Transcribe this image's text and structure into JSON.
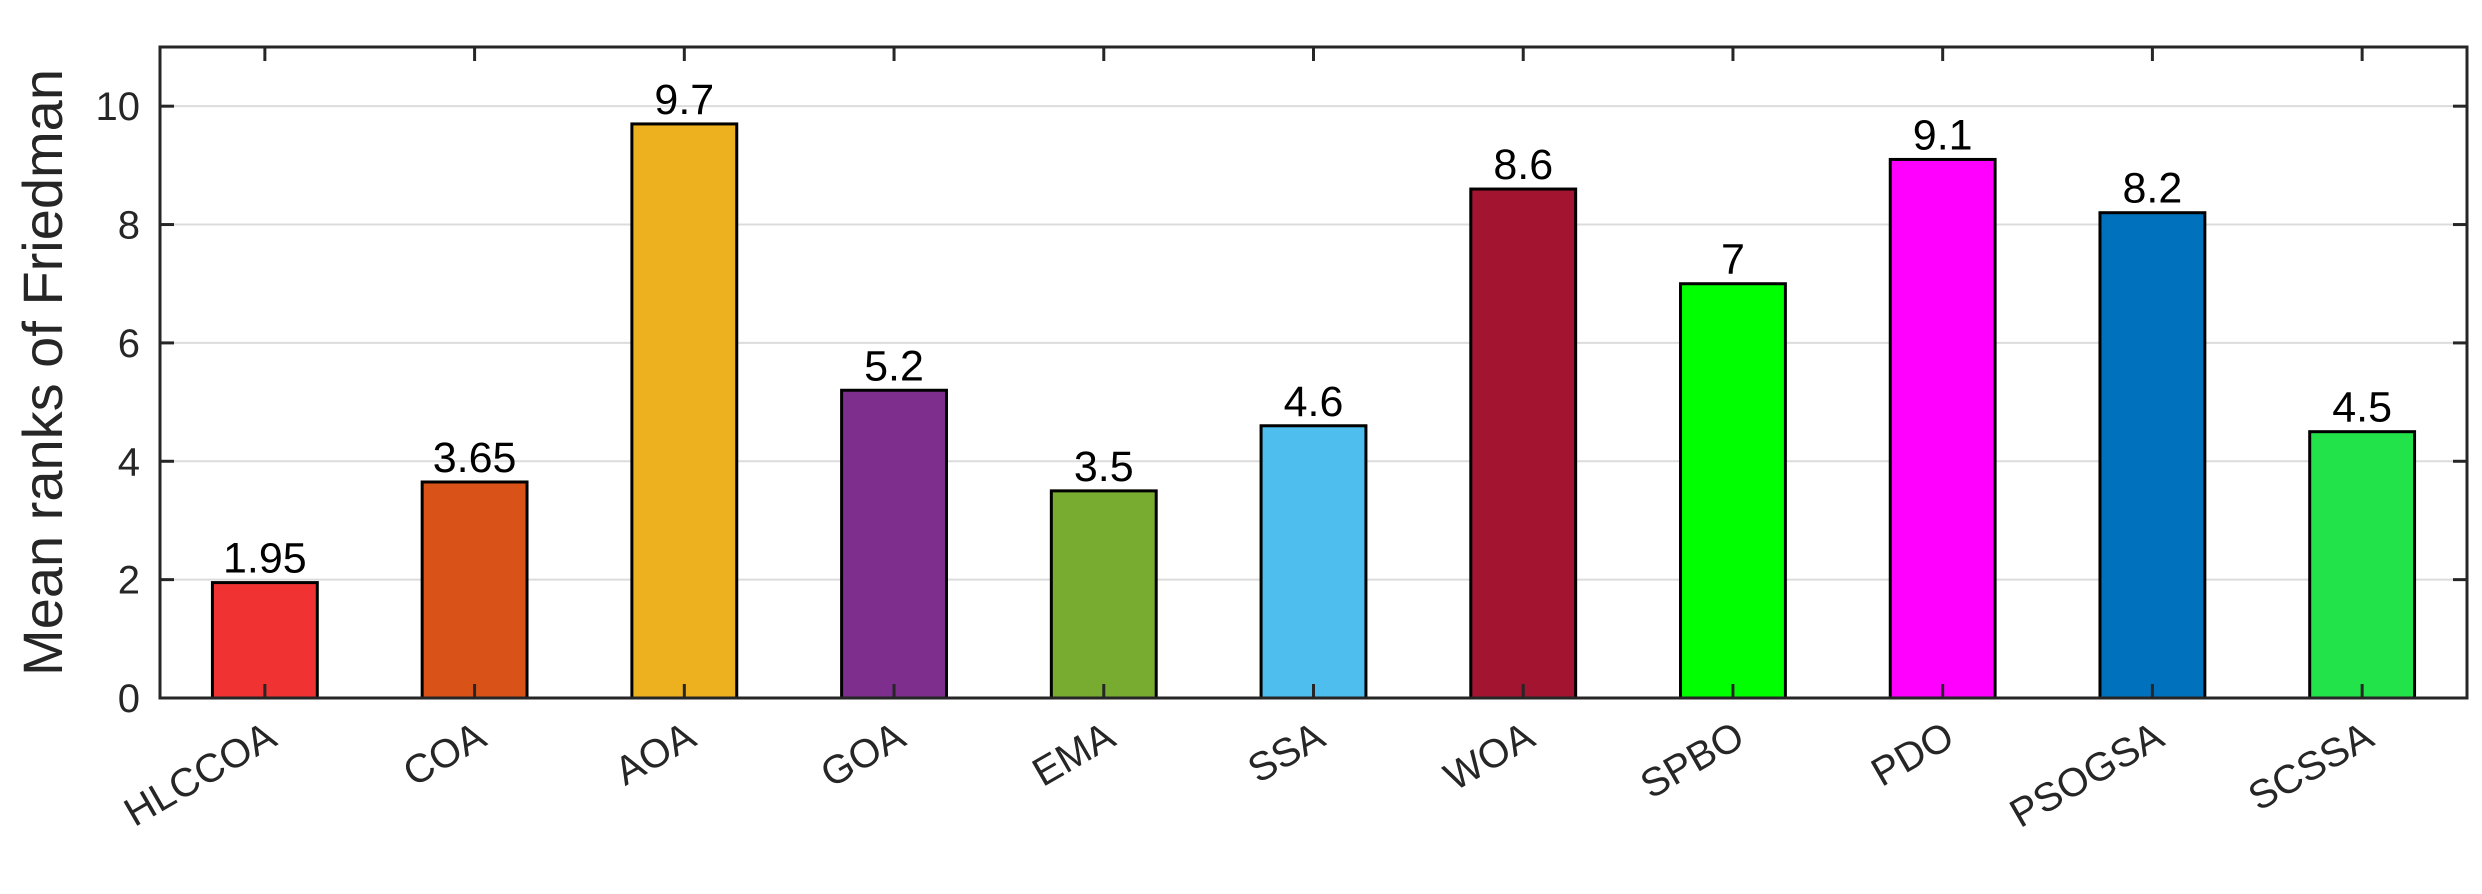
{
  "chart_data": {
    "type": "bar",
    "categories": [
      "HLCCOA",
      "COA",
      "AOA",
      "GOA",
      "EMA",
      "SSA",
      "WOA",
      "SPBO",
      "PDO",
      "PSOGSA",
      "SCSSA"
    ],
    "values": [
      1.95,
      3.65,
      9.7,
      5.2,
      3.5,
      4.6,
      8.6,
      7,
      9.1,
      8.2,
      4.5
    ],
    "value_labels": [
      "1.95",
      "3.65",
      "9.7",
      "5.2",
      "3.5",
      "4.6",
      "8.6",
      "7",
      "9.1",
      "8.2",
      "4.5"
    ],
    "colors": [
      "#f03232",
      "#d95319",
      "#edb120",
      "#7e2f8e",
      "#77ac30",
      "#4dbeee",
      "#a2142f",
      "#00ff00",
      "#ff00ff",
      "#0072bd",
      "#22e34a"
    ],
    "ylabel": "Mean ranks of Friedman",
    "xlabel": "",
    "title": "",
    "ylim": [
      0,
      11
    ],
    "yticks": [
      0,
      2,
      4,
      6,
      8,
      10
    ],
    "grid": "horizontal",
    "legend": "none"
  }
}
